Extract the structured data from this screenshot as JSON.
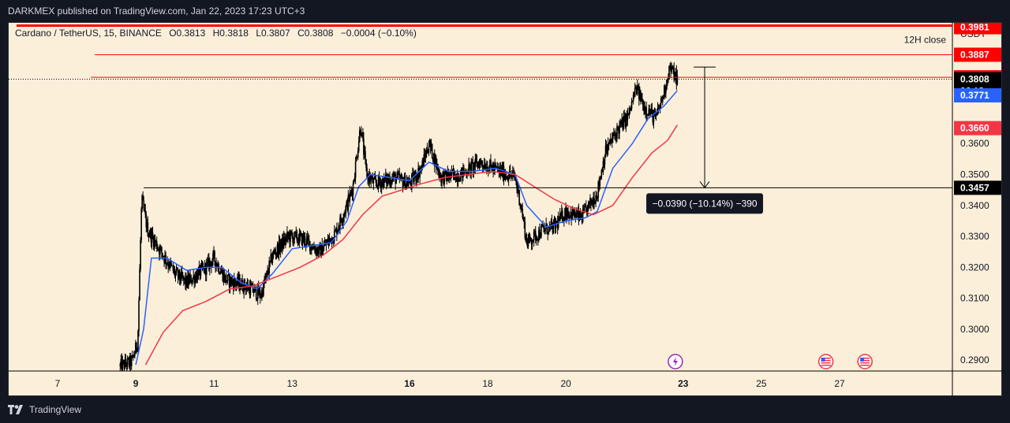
{
  "header": {
    "published": "DARKMEX published on TradingView.com, Jan 22, 2023 17:23 UTC+3"
  },
  "legend": {
    "symbol": "Cardano / TetherUS, 15, BINANCE",
    "open": "O0.3813",
    "high": "H0.3818",
    "low": "L0.3807",
    "close": "C0.3808",
    "change": "−0.0004 (−0.10%)"
  },
  "footer": {
    "logo_text": "TradingView"
  },
  "colors": {
    "background": "#fbefda",
    "candle": "#000000",
    "ema_fast": "#2962ff",
    "ema_slow": "#f23645",
    "red_label": "#ff0000",
    "blue_label": "#2962ff"
  },
  "chart_data": {
    "type": "candlestick",
    "y_axis": {
      "currency": "USDT",
      "ylim": [
        0.2865,
        0.399
      ],
      "ticks": [
        "0.2900",
        "0.3000",
        "0.3100",
        "0.3200",
        "0.3300",
        "0.3400",
        "0.3500",
        "0.3600"
      ]
    },
    "x_axis": {
      "ticks": [
        {
          "label": "7",
          "day": 7,
          "bold": false
        },
        {
          "label": "9",
          "day": 9,
          "bold": true
        },
        {
          "label": "11",
          "day": 11,
          "bold": false
        },
        {
          "label": "13",
          "day": 13,
          "bold": false
        },
        {
          "label": "16",
          "day": 16,
          "bold": true
        },
        {
          "label": "18",
          "day": 18,
          "bold": false
        },
        {
          "label": "20",
          "day": 20,
          "bold": false
        },
        {
          "label": "23",
          "day": 23,
          "bold": true
        },
        {
          "label": "25",
          "day": 25,
          "bold": false
        },
        {
          "label": "27",
          "day": 27,
          "bold": false
        }
      ]
    },
    "price_path": [
      [
        8.6,
        0.288
      ],
      [
        8.9,
        0.2895
      ],
      [
        9.05,
        0.296
      ],
      [
        9.15,
        0.342
      ],
      [
        9.3,
        0.332
      ],
      [
        9.7,
        0.324
      ],
      [
        10.0,
        0.318
      ],
      [
        10.3,
        0.315
      ],
      [
        10.8,
        0.32
      ],
      [
        11.0,
        0.323
      ],
      [
        11.3,
        0.316
      ],
      [
        11.8,
        0.314
      ],
      [
        12.2,
        0.311
      ],
      [
        12.5,
        0.324
      ],
      [
        12.9,
        0.33
      ],
      [
        13.3,
        0.329
      ],
      [
        13.7,
        0.325
      ],
      [
        14.1,
        0.331
      ],
      [
        14.4,
        0.34
      ],
      [
        14.55,
        0.346
      ],
      [
        14.75,
        0.366
      ],
      [
        14.9,
        0.35
      ],
      [
        15.1,
        0.347
      ],
      [
        15.6,
        0.349
      ],
      [
        16.0,
        0.347
      ],
      [
        16.3,
        0.352
      ],
      [
        16.5,
        0.36
      ],
      [
        16.8,
        0.349
      ],
      [
        17.3,
        0.35
      ],
      [
        17.8,
        0.354
      ],
      [
        18.3,
        0.351
      ],
      [
        18.7,
        0.349
      ],
      [
        18.85,
        0.34
      ],
      [
        19.0,
        0.328
      ],
      [
        19.4,
        0.332
      ],
      [
        19.7,
        0.333
      ],
      [
        20.0,
        0.338
      ],
      [
        20.4,
        0.336
      ],
      [
        20.8,
        0.344
      ],
      [
        21.0,
        0.357
      ],
      [
        21.3,
        0.364
      ],
      [
        21.6,
        0.369
      ],
      [
        21.8,
        0.378
      ],
      [
        22.0,
        0.372
      ],
      [
        22.3,
        0.368
      ],
      [
        22.5,
        0.376
      ],
      [
        22.65,
        0.3845
      ],
      [
        22.85,
        0.3808
      ]
    ],
    "series": [
      {
        "kind": "ema-fast",
        "color": "#2962ff",
        "points": [
          [
            9.0,
            0.2885
          ],
          [
            9.2,
            0.3
          ],
          [
            9.4,
            0.323
          ],
          [
            9.8,
            0.323
          ],
          [
            10.3,
            0.319
          ],
          [
            10.8,
            0.32
          ],
          [
            11.2,
            0.32
          ],
          [
            11.7,
            0.315
          ],
          [
            12.1,
            0.313
          ],
          [
            12.5,
            0.318
          ],
          [
            13.0,
            0.326
          ],
          [
            13.5,
            0.327
          ],
          [
            14.0,
            0.328
          ],
          [
            14.4,
            0.335
          ],
          [
            14.7,
            0.346
          ],
          [
            15.0,
            0.35
          ],
          [
            15.5,
            0.349
          ],
          [
            16.0,
            0.348
          ],
          [
            16.5,
            0.354
          ],
          [
            17.0,
            0.351
          ],
          [
            17.6,
            0.351
          ],
          [
            18.2,
            0.352
          ],
          [
            18.7,
            0.35
          ],
          [
            19.0,
            0.34
          ],
          [
            19.5,
            0.333
          ],
          [
            20.0,
            0.335
          ],
          [
            20.5,
            0.336
          ],
          [
            20.8,
            0.338
          ],
          [
            21.2,
            0.352
          ],
          [
            21.7,
            0.36
          ],
          [
            22.1,
            0.368
          ],
          [
            22.5,
            0.372
          ],
          [
            22.85,
            0.3771
          ]
        ]
      },
      {
        "kind": "ema-slow",
        "color": "#f23645",
        "points": [
          [
            9.25,
            0.2885
          ],
          [
            9.7,
            0.299
          ],
          [
            10.2,
            0.306
          ],
          [
            10.8,
            0.309
          ],
          [
            11.4,
            0.313
          ],
          [
            12.0,
            0.314
          ],
          [
            12.6,
            0.317
          ],
          [
            13.2,
            0.32
          ],
          [
            13.8,
            0.324
          ],
          [
            14.3,
            0.329
          ],
          [
            14.8,
            0.337
          ],
          [
            15.3,
            0.343
          ],
          [
            15.8,
            0.345
          ],
          [
            16.3,
            0.347
          ],
          [
            16.9,
            0.349
          ],
          [
            17.5,
            0.35
          ],
          [
            18.1,
            0.351
          ],
          [
            18.7,
            0.35
          ],
          [
            19.2,
            0.346
          ],
          [
            19.7,
            0.342
          ],
          [
            20.2,
            0.339
          ],
          [
            20.7,
            0.337
          ],
          [
            21.2,
            0.34
          ],
          [
            21.7,
            0.349
          ],
          [
            22.2,
            0.357
          ],
          [
            22.6,
            0.361
          ],
          [
            22.85,
            0.366
          ]
        ]
      }
    ],
    "horizontal_lines": [
      {
        "price": 0.3981,
        "color": "#ff0000",
        "thick": true,
        "from_day": 5.95,
        "label": "0.3981",
        "label_bg": "#ff0000"
      },
      {
        "price": 0.3887,
        "color": "#ff0000",
        "thick": false,
        "from_day": 7.95,
        "label": "0.3887",
        "label_bg": "#ff0000",
        "caption": "12H close"
      },
      {
        "price": 0.3814,
        "color": "#ff0000",
        "thick": false,
        "from_day": 7.85,
        "label": "0.3814",
        "label_bg": "#ff0000"
      },
      {
        "price": 0.3457,
        "color": "#000000",
        "thick": false,
        "from_day": 9.2,
        "label": "0.3457",
        "label_bg": "#000000"
      }
    ],
    "price_labels": [
      {
        "price": 0.3808,
        "text": "0.3808",
        "countdown": "06:13",
        "bg": "#000000"
      },
      {
        "price": 0.3771,
        "text": "0.3771",
        "bg": "#2962ff"
      },
      {
        "price": 0.366,
        "text": "0.3660",
        "bg": "#f23645"
      }
    ],
    "measure": {
      "x_day": 23.55,
      "from_price": 0.3847,
      "to_price": 0.3457,
      "label": "−0.0390 (−10.14%) −390"
    },
    "events": [
      {
        "day": 22.8,
        "kind": "lightning-icon"
      },
      {
        "day": 26.65,
        "kind": "us-flag-icon"
      },
      {
        "day": 27.65,
        "kind": "us-flag-icon"
      }
    ]
  }
}
